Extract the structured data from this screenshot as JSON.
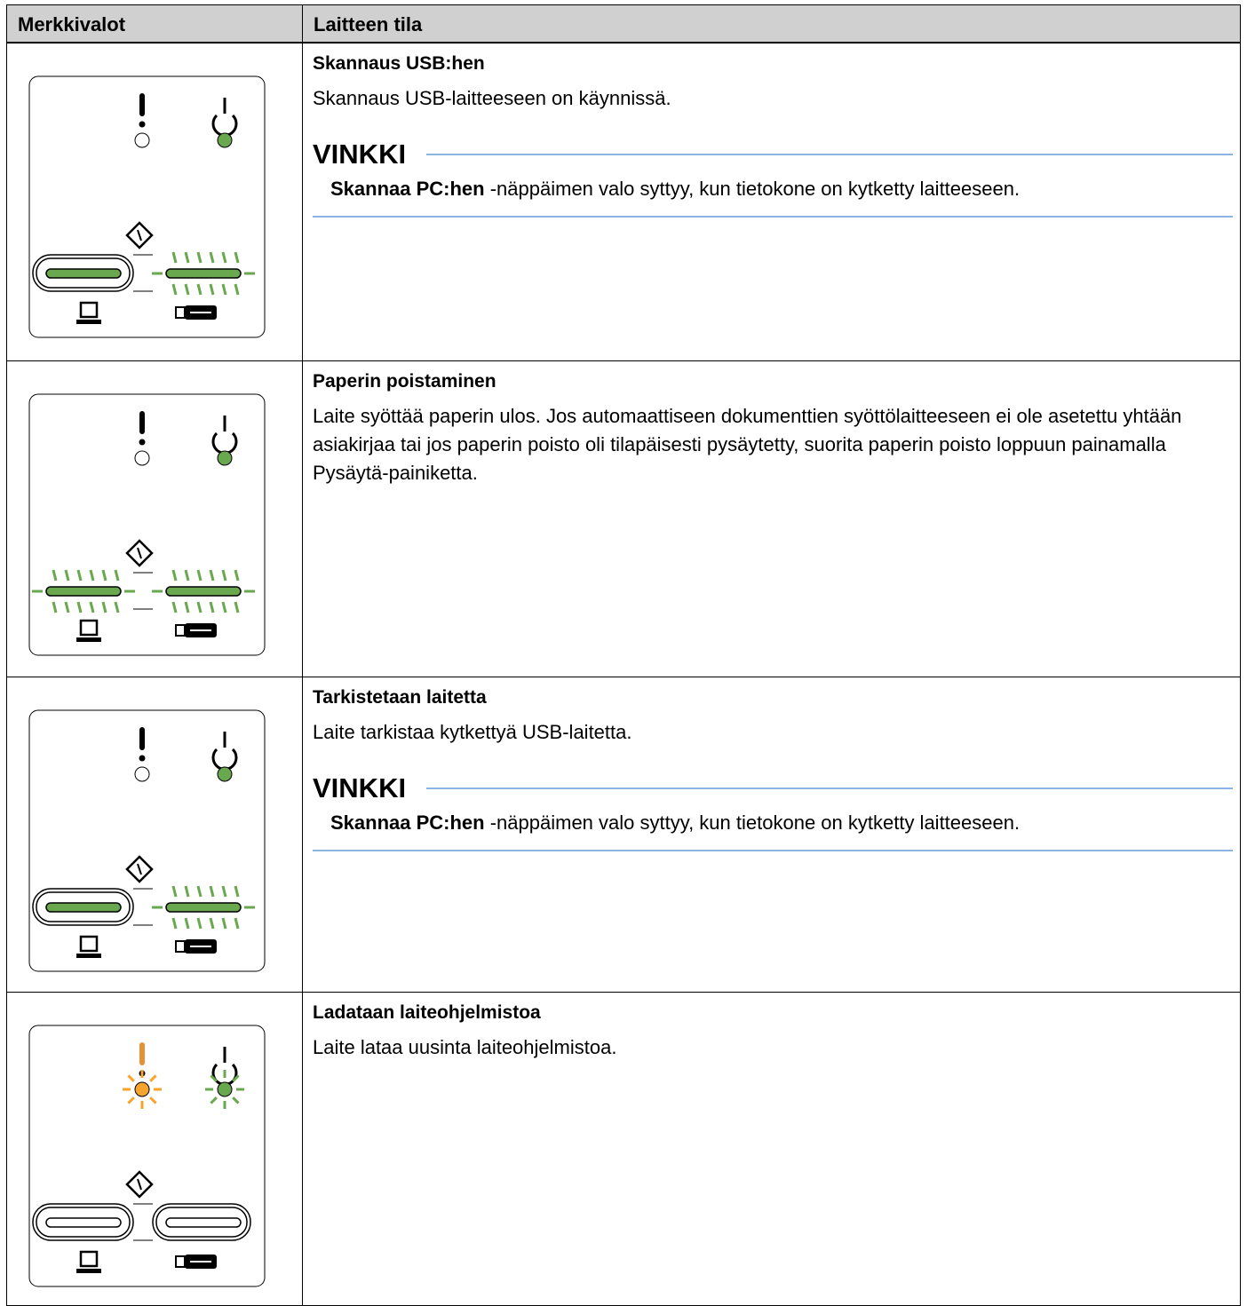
{
  "table": {
    "header": [
      "Merkkivalot",
      "Laitteen tila"
    ],
    "rows": [
      {
        "title": "Skannaus USB:hen",
        "text": "Skannaus USB-laitteeseen on käynnissä.",
        "note": {
          "heading": "VINKKI",
          "bold": "Skannaa PC:hen",
          "text": " -näppäimen valo syttyy, kun tietokone on kytketty laitteeseen."
        }
      },
      {
        "title": "Paperin poistaminen",
        "text": "Laite syöttää paperin ulos. Jos automaattiseen dokumenttien syöttölaitteeseen ei ole asetettu yhtään asiakirjaa tai jos paperin poisto oli tilapäisesti pysäytetty, suorita paperin poisto loppuun painamalla Pysäytä-painiketta."
      },
      {
        "title": "Tarkistetaan laitetta",
        "text": "Laite tarkistaa kytkettyä USB-laitetta.",
        "note": {
          "heading": "VINKKI",
          "bold": "Skannaa PC:hen",
          "text": " -näppäimen valo syttyy, kun tietokone on kytketty laitteeseen."
        }
      },
      {
        "title": "Ladataan laiteohjelmistoa",
        "text": "Laite lataa uusinta laiteohjelmistoa."
      }
    ]
  }
}
